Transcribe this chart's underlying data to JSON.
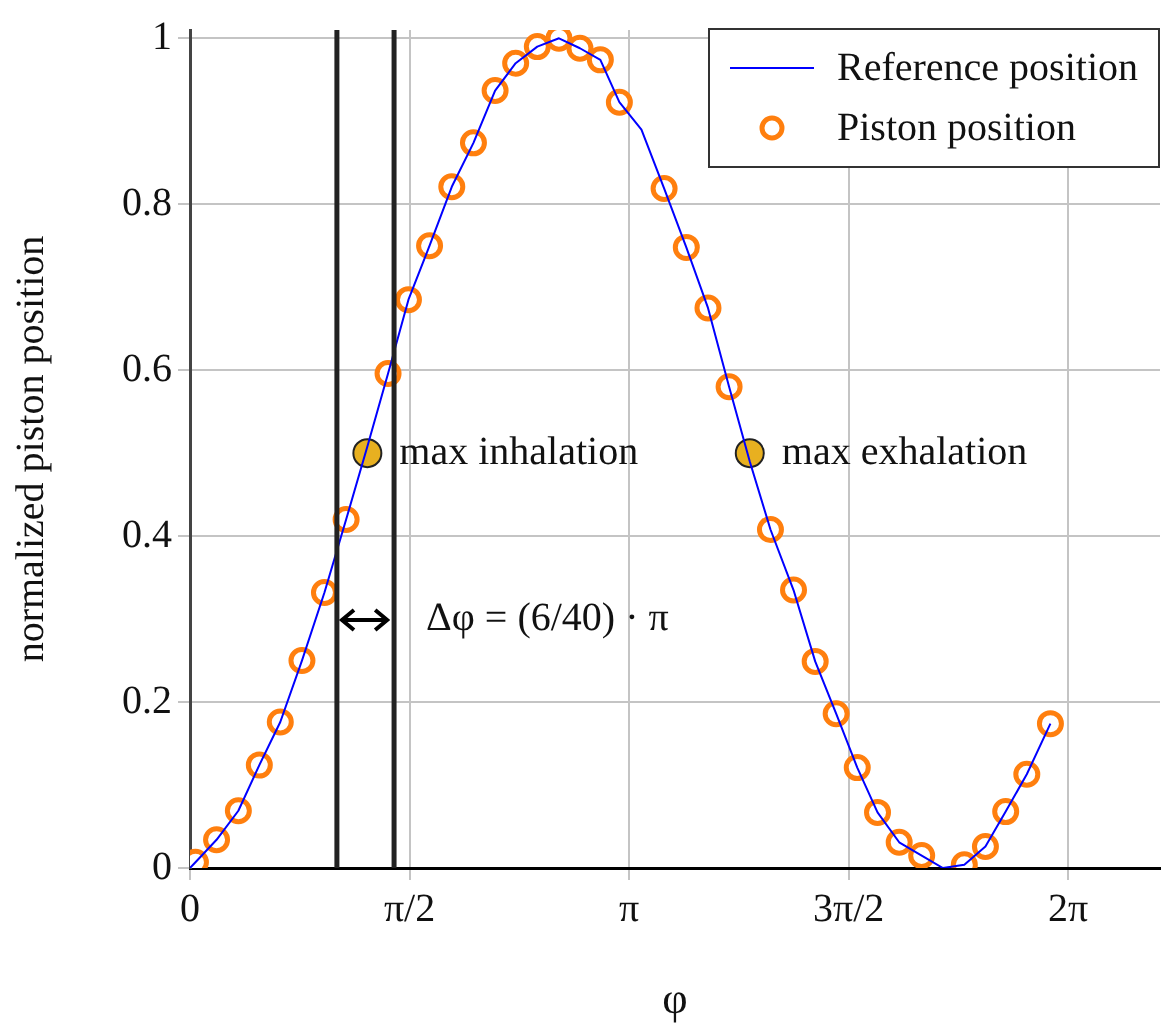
{
  "chart_data": {
    "type": "line",
    "xlabel": "φ",
    "ylabel": "normalized piston position",
    "xlim": [
      0,
      6.94
    ],
    "ylim": [
      0,
      1.01
    ],
    "xticks": [
      {
        "value": 0,
        "label": "0"
      },
      {
        "value": 1.5708,
        "label": "π/2"
      },
      {
        "value": 3.1416,
        "label": "π"
      },
      {
        "value": 4.7124,
        "label": "3π/2"
      },
      {
        "value": 6.2832,
        "label": "2π"
      }
    ],
    "yticks": [
      0,
      0.2,
      0.4,
      0.6,
      0.8,
      1
    ],
    "grid": true,
    "legend": "top right",
    "series": [
      {
        "name": "Reference position",
        "type": "line",
        "marker": "none",
        "color": "#0000ff",
        "x": [
          0,
          0.039,
          0.19,
          0.346,
          0.496,
          0.646,
          0.801,
          0.962,
          1.117,
          1.269,
          1.417,
          1.563,
          1.714,
          1.873,
          2.028,
          2.183,
          2.33,
          2.485,
          2.64,
          2.79,
          2.936,
          3.072,
          3.23,
          3.392,
          3.551,
          3.706,
          3.857,
          4.005,
          4.153,
          4.318,
          4.473,
          4.623,
          4.774,
          4.919,
          5.074,
          5.235,
          5.387,
          5.54,
          5.691,
          5.836,
          5.987,
          6.156
        ],
        "values": [
          0,
          0.007,
          0.034,
          0.069,
          0.124,
          0.176,
          0.25,
          0.332,
          0.42,
          0.508,
          0.596,
          0.685,
          0.75,
          0.821,
          0.874,
          0.937,
          0.97,
          0.99,
          1.0,
          0.988,
          0.974,
          0.923,
          0.89,
          0.819,
          0.748,
          0.675,
          0.58,
          0.49,
          0.408,
          0.335,
          0.249,
          0.186,
          0.121,
          0.067,
          0.031,
          0.015,
          0.0,
          0.004,
          0.026,
          0.068,
          0.113,
          0.174
        ]
      },
      {
        "name": "Piston position",
        "type": "scatter",
        "marker": "circle",
        "color": "#ff7f0e",
        "x": [
          0.039,
          0.19,
          0.346,
          0.496,
          0.646,
          0.801,
          0.962,
          1.117,
          1.269,
          1.417,
          1.563,
          1.714,
          1.873,
          2.028,
          2.183,
          2.33,
          2.485,
          2.64,
          2.79,
          2.936,
          3.072,
          3.23,
          3.392,
          3.551,
          3.706,
          3.857,
          4.005,
          4.153,
          4.318,
          4.473,
          4.623,
          4.774,
          4.919,
          5.074,
          5.235,
          5.387,
          5.54,
          5.691,
          5.836,
          5.987,
          6.156
        ],
        "values": [
          0.007,
          0.034,
          0.069,
          0.124,
          0.176,
          0.25,
          0.332,
          0.42,
          null,
          0.596,
          0.685,
          0.75,
          0.821,
          0.874,
          0.937,
          0.97,
          0.99,
          1.0,
          0.988,
          0.974,
          0.923,
          null,
          0.819,
          0.748,
          0.675,
          0.58,
          null,
          0.408,
          0.335,
          0.249,
          0.186,
          0.121,
          0.067,
          0.031,
          0.015,
          null,
          0.004,
          0.026,
          0.068,
          0.113,
          0.174
        ]
      },
      {
        "type": "scatter",
        "marker": "circle",
        "color": "#e8b020",
        "x": [
          1.269,
          4.005
        ],
        "values": [
          0.5,
          0.5
        ]
      }
    ],
    "ref_lines": [
      {
        "axis": "x",
        "value": 1.051,
        "color": "#222222"
      },
      {
        "axis": "x",
        "value": 1.46,
        "color": "#222222"
      }
    ],
    "annotations": [
      {
        "text": "max inhalation",
        "x": 1.269,
        "y": 0.5
      },
      {
        "text": "max exhalation",
        "x": 4.005,
        "y": 0.5
      },
      {
        "text": "Δφ = (6/40) · π",
        "x": 1.46,
        "y": 0.3
      }
    ]
  }
}
